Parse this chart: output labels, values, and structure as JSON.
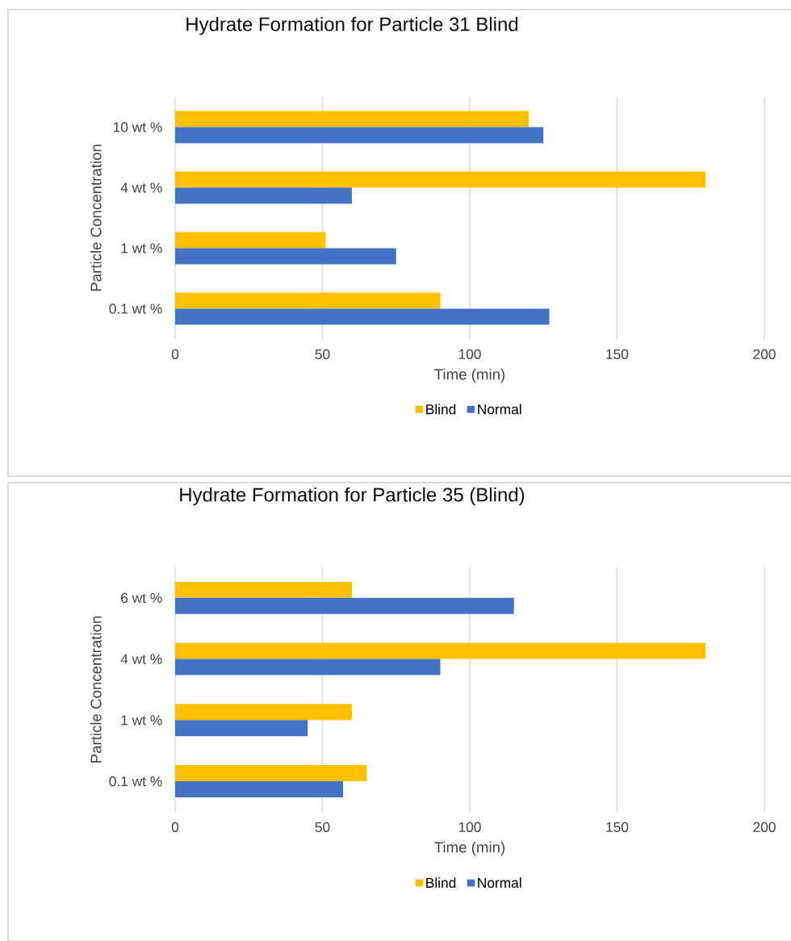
{
  "chart_data": [
    {
      "type": "bar",
      "orientation": "horizontal",
      "title": "Hydrate Formation for Particle 31 Blind",
      "xlabel": "Time (min)",
      "ylabel": "Particle Concentration",
      "categories": [
        "10 wt %",
        "4 wt %",
        "1 wt %",
        "0.1 wt %"
      ],
      "series": [
        {
          "name": "Blind",
          "color": "#ffc000",
          "values": [
            120,
            180,
            51,
            90
          ]
        },
        {
          "name": "Normal",
          "color": "#4472c4",
          "values": [
            125,
            60,
            75,
            127
          ]
        }
      ],
      "xlim": [
        0,
        200
      ],
      "xticks": [
        0,
        50,
        100,
        150,
        200
      ],
      "grid": "x",
      "legend": "bottom"
    },
    {
      "type": "bar",
      "orientation": "horizontal",
      "title": "Hydrate Formation for Particle 35 (Blind)",
      "xlabel": "Time (min)",
      "ylabel": "Particle Concentration",
      "categories": [
        "6 wt %",
        "4 wt %",
        "1 wt %",
        "0.1 wt %"
      ],
      "series": [
        {
          "name": "Blind",
          "color": "#ffc000",
          "values": [
            60,
            180,
            60,
            65
          ]
        },
        {
          "name": "Normal",
          "color": "#4472c4",
          "values": [
            115,
            90,
            45,
            57
          ]
        }
      ],
      "xlim": [
        0,
        200
      ],
      "xticks": [
        0,
        50,
        100,
        150,
        200
      ],
      "grid": "x",
      "legend": "bottom"
    }
  ]
}
